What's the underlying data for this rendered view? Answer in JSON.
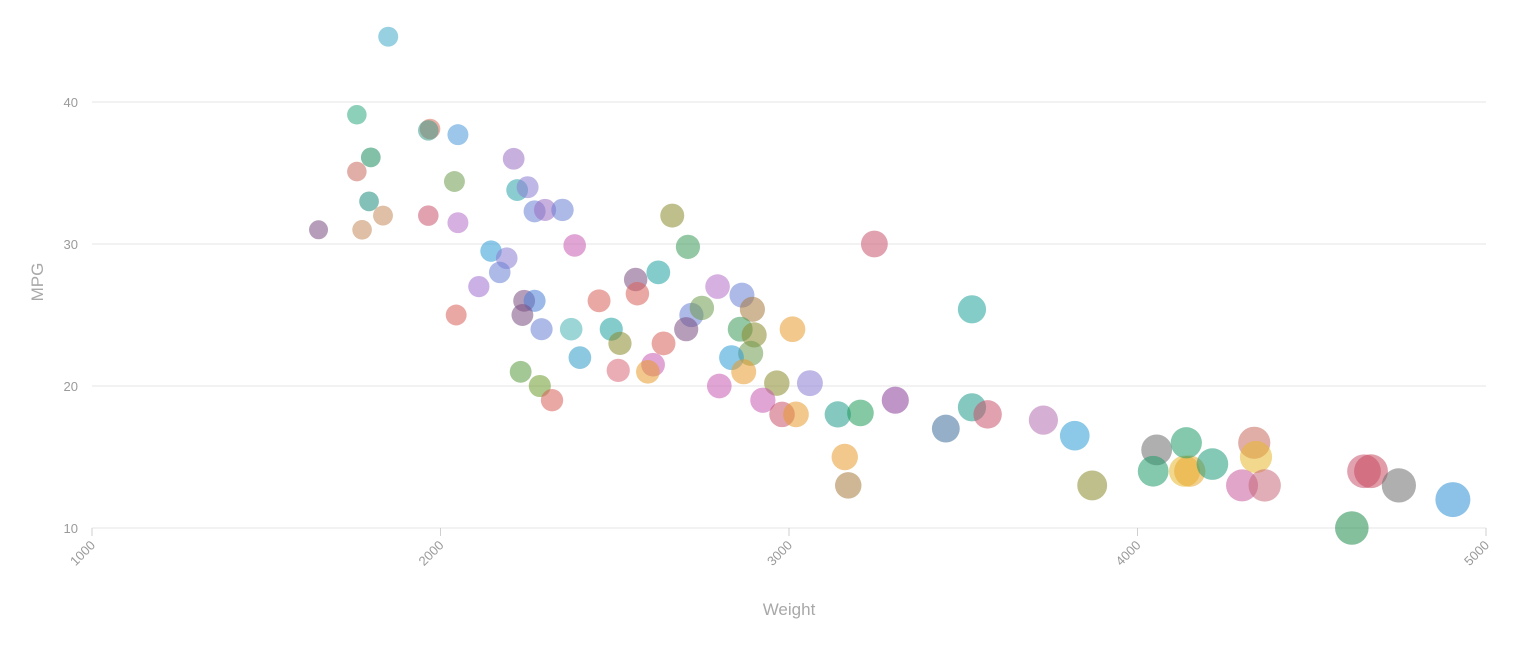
{
  "chart_data": {
    "type": "scatter",
    "title": "",
    "xlabel": "Weight",
    "ylabel": "MPG",
    "xlim": [
      1000,
      5000
    ],
    "ylim": [
      10,
      45
    ],
    "xticks": [
      "1000",
      "2000",
      "3000",
      "4000",
      "5000"
    ],
    "yticks": [
      "10",
      "20",
      "30",
      "40"
    ],
    "grid": true,
    "legend": "none",
    "size_encodes": "Weight",
    "points": [
      {
        "x": 1850,
        "y": 44.6,
        "color": "#3fa9c9"
      },
      {
        "x": 1760,
        "y": 39.1,
        "color": "#2faa7f"
      },
      {
        "x": 1970,
        "y": 38.1,
        "color": "#d9705a"
      },
      {
        "x": 1965,
        "y": 38.0,
        "color": "#3d9b8a"
      },
      {
        "x": 2050,
        "y": 37.7,
        "color": "#4a98d8"
      },
      {
        "x": 1800,
        "y": 36.1,
        "color": "#1b8c5e"
      },
      {
        "x": 1760,
        "y": 35.1,
        "color": "#c96a5e"
      },
      {
        "x": 2210,
        "y": 36.0,
        "color": "#9b6fc2"
      },
      {
        "x": 2040,
        "y": 34.4,
        "color": "#6e9a4e"
      },
      {
        "x": 2220,
        "y": 33.8,
        "color": "#2aa3a8"
      },
      {
        "x": 2250,
        "y": 34.0,
        "color": "#8a7dd4"
      },
      {
        "x": 1795,
        "y": 33.0,
        "color": "#1b8c7e"
      },
      {
        "x": 1835,
        "y": 32.0,
        "color": "#c48a5c"
      },
      {
        "x": 2270,
        "y": 32.3,
        "color": "#6a7fd4"
      },
      {
        "x": 2300,
        "y": 32.4,
        "color": "#9b6fc2"
      },
      {
        "x": 2350,
        "y": 32.4,
        "color": "#6a7fd4"
      },
      {
        "x": 1965,
        "y": 32.0,
        "color": "#c9546e"
      },
      {
        "x": 2050,
        "y": 31.5,
        "color": "#b56fc8"
      },
      {
        "x": 1650,
        "y": 31.0,
        "color": "#7a4f82"
      },
      {
        "x": 1775,
        "y": 31.0,
        "color": "#c48a5c"
      },
      {
        "x": 2385,
        "y": 29.9,
        "color": "#c75bb0"
      },
      {
        "x": 2145,
        "y": 29.5,
        "color": "#2e9bd4"
      },
      {
        "x": 2190,
        "y": 29.0,
        "color": "#8a7dd4"
      },
      {
        "x": 2170,
        "y": 28.0,
        "color": "#6a7fd4"
      },
      {
        "x": 2110,
        "y": 27.0,
        "color": "#a070d0"
      },
      {
        "x": 2665,
        "y": 32.0,
        "color": "#8a8a2e"
      },
      {
        "x": 2710,
        "y": 29.8,
        "color": "#3d9b5a"
      },
      {
        "x": 2625,
        "y": 28.0,
        "color": "#1fa3a3"
      },
      {
        "x": 2560,
        "y": 27.5,
        "color": "#7a4f82"
      },
      {
        "x": 2565,
        "y": 26.5,
        "color": "#d9605a"
      },
      {
        "x": 2455,
        "y": 26.0,
        "color": "#d9605a"
      },
      {
        "x": 2240,
        "y": 26.0,
        "color": "#7a4f82"
      },
      {
        "x": 2270,
        "y": 26.0,
        "color": "#4a80d8"
      },
      {
        "x": 2235,
        "y": 25.0,
        "color": "#7a4f82"
      },
      {
        "x": 2045,
        "y": 25.0,
        "color": "#d9605a"
      },
      {
        "x": 2290,
        "y": 24.0,
        "color": "#6a7fd4"
      },
      {
        "x": 2375,
        "y": 24.0,
        "color": "#4ab3b3"
      },
      {
        "x": 2490,
        "y": 24.0,
        "color": "#1fa3a3"
      },
      {
        "x": 2400,
        "y": 22.0,
        "color": "#2e9bc4"
      },
      {
        "x": 2515,
        "y": 23.0,
        "color": "#8a8a2e"
      },
      {
        "x": 2510,
        "y": 21.1,
        "color": "#d96a7a"
      },
      {
        "x": 2230,
        "y": 21.0,
        "color": "#5a9b3e"
      },
      {
        "x": 2285,
        "y": 20.0,
        "color": "#6e9a2e"
      },
      {
        "x": 2320,
        "y": 19.0,
        "color": "#d9605a"
      },
      {
        "x": 2640,
        "y": 23.0,
        "color": "#d9605a"
      },
      {
        "x": 2610,
        "y": 21.5,
        "color": "#c75bb0"
      },
      {
        "x": 2595,
        "y": 21.0,
        "color": "#e89a2e"
      },
      {
        "x": 2795,
        "y": 27.0,
        "color": "#b56fc8"
      },
      {
        "x": 2720,
        "y": 25.0,
        "color": "#6a7fd4"
      },
      {
        "x": 2750,
        "y": 25.5,
        "color": "#6e9a4e"
      },
      {
        "x": 2705,
        "y": 24.0,
        "color": "#7a4f82"
      },
      {
        "x": 2865,
        "y": 26.4,
        "color": "#6a7fd4"
      },
      {
        "x": 2895,
        "y": 25.4,
        "color": "#a87a3e"
      },
      {
        "x": 2860,
        "y": 24.0,
        "color": "#3d9b5a"
      },
      {
        "x": 2900,
        "y": 23.6,
        "color": "#8a8a2e"
      },
      {
        "x": 2890,
        "y": 22.3,
        "color": "#6e9a4e"
      },
      {
        "x": 2835,
        "y": 22.0,
        "color": "#2e9bd4"
      },
      {
        "x": 2870,
        "y": 21.0,
        "color": "#e89a2e"
      },
      {
        "x": 2800,
        "y": 20.0,
        "color": "#c75bb0"
      },
      {
        "x": 2965,
        "y": 20.2,
        "color": "#8a8a2e"
      },
      {
        "x": 2925,
        "y": 19.0,
        "color": "#c75bb0"
      },
      {
        "x": 2980,
        "y": 18.0,
        "color": "#c9546e"
      },
      {
        "x": 3020,
        "y": 18.0,
        "color": "#e89a2e"
      },
      {
        "x": 3010,
        "y": 24.0,
        "color": "#e89a2e"
      },
      {
        "x": 3060,
        "y": 20.2,
        "color": "#8a7dd4"
      },
      {
        "x": 3140,
        "y": 18.0,
        "color": "#1f9b8a"
      },
      {
        "x": 3205,
        "y": 18.1,
        "color": "#1f9b5a"
      },
      {
        "x": 3160,
        "y": 15.0,
        "color": "#e89a2e"
      },
      {
        "x": 3170,
        "y": 13.0,
        "color": "#a87a3e"
      },
      {
        "x": 3245,
        "y": 30.0,
        "color": "#c9546e"
      },
      {
        "x": 3305,
        "y": 19.0,
        "color": "#8a3e9b"
      },
      {
        "x": 3450,
        "y": 17.0,
        "color": "#3e6e9b"
      },
      {
        "x": 3525,
        "y": 25.4,
        "color": "#1fa39b"
      },
      {
        "x": 3525,
        "y": 18.5,
        "color": "#1f9b8a"
      },
      {
        "x": 3570,
        "y": 18.0,
        "color": "#c9546e"
      },
      {
        "x": 3730,
        "y": 17.6,
        "color": "#b56fb0"
      },
      {
        "x": 3820,
        "y": 16.5,
        "color": "#2e9bd4"
      },
      {
        "x": 3870,
        "y": 13.0,
        "color": "#8a8a2e"
      },
      {
        "x": 4055,
        "y": 15.5,
        "color": "#6e6e6e"
      },
      {
        "x": 4045,
        "y": 14.0,
        "color": "#1f9b6a"
      },
      {
        "x": 4135,
        "y": 14.0,
        "color": "#e8b82e"
      },
      {
        "x": 4150,
        "y": 14.0,
        "color": "#e8a82e"
      },
      {
        "x": 4140,
        "y": 16.0,
        "color": "#1f9b6a"
      },
      {
        "x": 4215,
        "y": 14.5,
        "color": "#1f9b7a"
      },
      {
        "x": 4335,
        "y": 16.0,
        "color": "#c96a5e"
      },
      {
        "x": 4340,
        "y": 15.0,
        "color": "#e8b82e"
      },
      {
        "x": 4300,
        "y": 13.0,
        "color": "#c75b9b"
      },
      {
        "x": 4365,
        "y": 13.0,
        "color": "#c96a7a"
      },
      {
        "x": 4615,
        "y": 10.0,
        "color": "#1f8c4a"
      },
      {
        "x": 4650,
        "y": 14.0,
        "color": "#c9546e"
      },
      {
        "x": 4670,
        "y": 14.0,
        "color": "#c94a5e"
      },
      {
        "x": 4750,
        "y": 13.0,
        "color": "#6e6e6e"
      },
      {
        "x": 4905,
        "y": 12.0,
        "color": "#2e8fd4"
      }
    ]
  }
}
